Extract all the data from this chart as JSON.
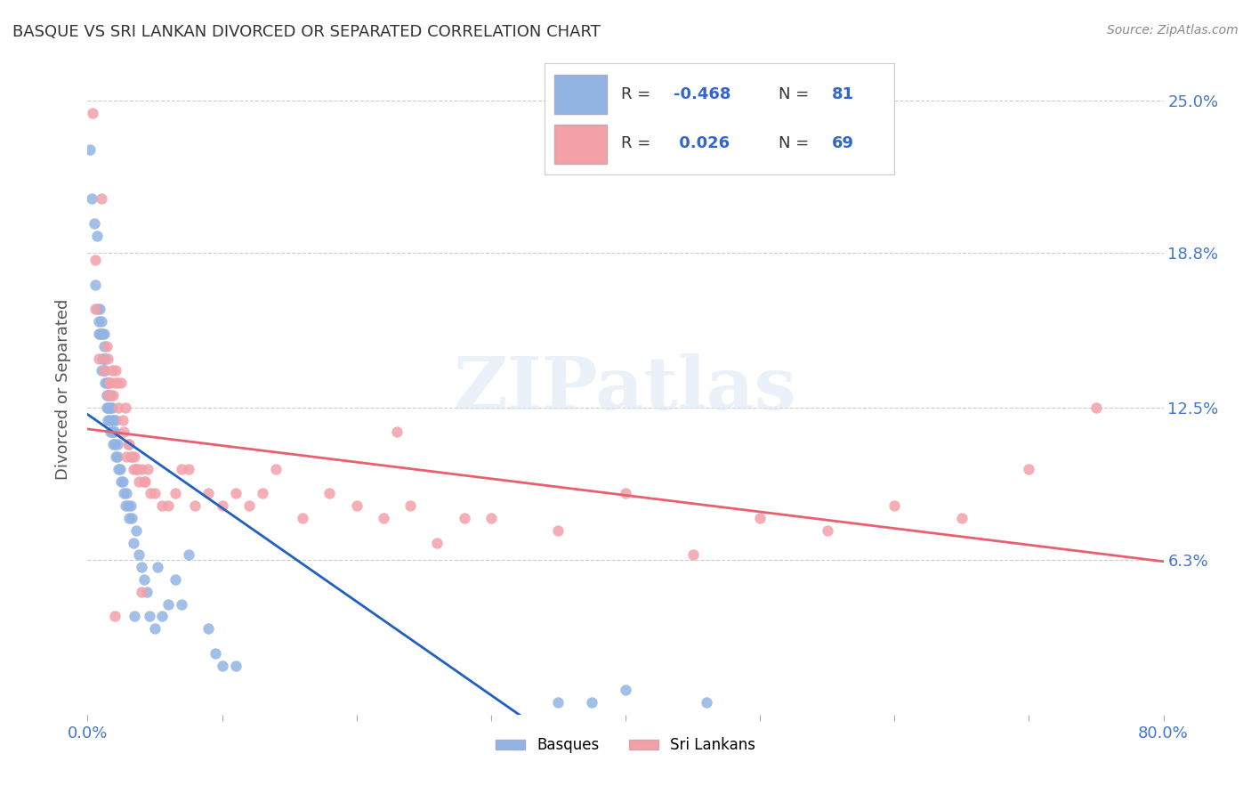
{
  "title": "BASQUE VS SRI LANKAN DIVORCED OR SEPARATED CORRELATION CHART",
  "source": "Source: ZipAtlas.com",
  "ylabel": "Divorced or Separated",
  "xlabel": "",
  "legend_labels": [
    "Basques",
    "Sri Lankans"
  ],
  "basque_color": "#92b4e3",
  "srilanka_color": "#f4a0a8",
  "basque_line_color": "#2060c0",
  "srilanka_line_color": "#e86070",
  "basque_R": -0.468,
  "basque_N": 81,
  "srilanka_R": 0.026,
  "srilanka_N": 69,
  "xlim": [
    0.0,
    0.8
  ],
  "ylim": [
    0.0,
    0.265
  ],
  "ytick_vals": [
    0.0,
    0.063,
    0.125,
    0.188,
    0.25
  ],
  "ytick_labels": [
    "",
    "6.3%",
    "12.5%",
    "18.8%",
    "25.0%"
  ],
  "watermark": "ZIPatlas",
  "background_color": "#ffffff",
  "basque_x": [
    0.002,
    0.003,
    0.005,
    0.006,
    0.007,
    0.007,
    0.008,
    0.008,
    0.009,
    0.009,
    0.01,
    0.01,
    0.01,
    0.011,
    0.011,
    0.012,
    0.012,
    0.012,
    0.012,
    0.013,
    0.013,
    0.013,
    0.014,
    0.014,
    0.014,
    0.015,
    0.015,
    0.015,
    0.015,
    0.016,
    0.016,
    0.016,
    0.017,
    0.017,
    0.017,
    0.018,
    0.018,
    0.018,
    0.019,
    0.019,
    0.019,
    0.02,
    0.02,
    0.021,
    0.021,
    0.022,
    0.022,
    0.023,
    0.024,
    0.025,
    0.026,
    0.027,
    0.028,
    0.029,
    0.03,
    0.031,
    0.032,
    0.033,
    0.034,
    0.035,
    0.036,
    0.038,
    0.04,
    0.042,
    0.044,
    0.046,
    0.05,
    0.052,
    0.055,
    0.06,
    0.065,
    0.07,
    0.075,
    0.09,
    0.095,
    0.1,
    0.11,
    0.35,
    0.375,
    0.4,
    0.46
  ],
  "basque_y": [
    0.23,
    0.21,
    0.2,
    0.175,
    0.195,
    0.165,
    0.155,
    0.16,
    0.165,
    0.155,
    0.16,
    0.155,
    0.14,
    0.155,
    0.145,
    0.155,
    0.15,
    0.145,
    0.14,
    0.145,
    0.14,
    0.135,
    0.135,
    0.13,
    0.125,
    0.135,
    0.13,
    0.125,
    0.12,
    0.13,
    0.125,
    0.12,
    0.13,
    0.125,
    0.115,
    0.125,
    0.12,
    0.115,
    0.12,
    0.115,
    0.11,
    0.115,
    0.11,
    0.12,
    0.105,
    0.11,
    0.105,
    0.1,
    0.1,
    0.095,
    0.095,
    0.09,
    0.085,
    0.09,
    0.085,
    0.08,
    0.085,
    0.08,
    0.07,
    0.04,
    0.075,
    0.065,
    0.06,
    0.055,
    0.05,
    0.04,
    0.035,
    0.06,
    0.04,
    0.045,
    0.055,
    0.045,
    0.065,
    0.035,
    0.025,
    0.02,
    0.02,
    0.005,
    0.005,
    0.01,
    0.005
  ],
  "srilanka_x": [
    0.004,
    0.006,
    0.006,
    0.008,
    0.01,
    0.012,
    0.014,
    0.015,
    0.015,
    0.016,
    0.017,
    0.018,
    0.019,
    0.02,
    0.021,
    0.022,
    0.023,
    0.025,
    0.026,
    0.027,
    0.028,
    0.029,
    0.03,
    0.031,
    0.032,
    0.033,
    0.034,
    0.035,
    0.036,
    0.037,
    0.038,
    0.04,
    0.042,
    0.043,
    0.045,
    0.047,
    0.05,
    0.055,
    0.06,
    0.065,
    0.07,
    0.075,
    0.08,
    0.09,
    0.1,
    0.11,
    0.12,
    0.13,
    0.14,
    0.16,
    0.18,
    0.2,
    0.22,
    0.24,
    0.26,
    0.28,
    0.3,
    0.35,
    0.4,
    0.45,
    0.5,
    0.55,
    0.6,
    0.65,
    0.7,
    0.75,
    0.23,
    0.02,
    0.04
  ],
  "srilanka_y": [
    0.245,
    0.185,
    0.165,
    0.145,
    0.21,
    0.14,
    0.15,
    0.145,
    0.13,
    0.135,
    0.135,
    0.14,
    0.13,
    0.135,
    0.14,
    0.135,
    0.125,
    0.135,
    0.12,
    0.115,
    0.125,
    0.105,
    0.11,
    0.11,
    0.105,
    0.105,
    0.1,
    0.105,
    0.1,
    0.1,
    0.095,
    0.1,
    0.095,
    0.095,
    0.1,
    0.09,
    0.09,
    0.085,
    0.085,
    0.09,
    0.1,
    0.1,
    0.085,
    0.09,
    0.085,
    0.09,
    0.085,
    0.09,
    0.1,
    0.08,
    0.09,
    0.085,
    0.08,
    0.085,
    0.07,
    0.08,
    0.08,
    0.075,
    0.09,
    0.065,
    0.08,
    0.075,
    0.085,
    0.08,
    0.1,
    0.125,
    0.115,
    0.04,
    0.05
  ]
}
